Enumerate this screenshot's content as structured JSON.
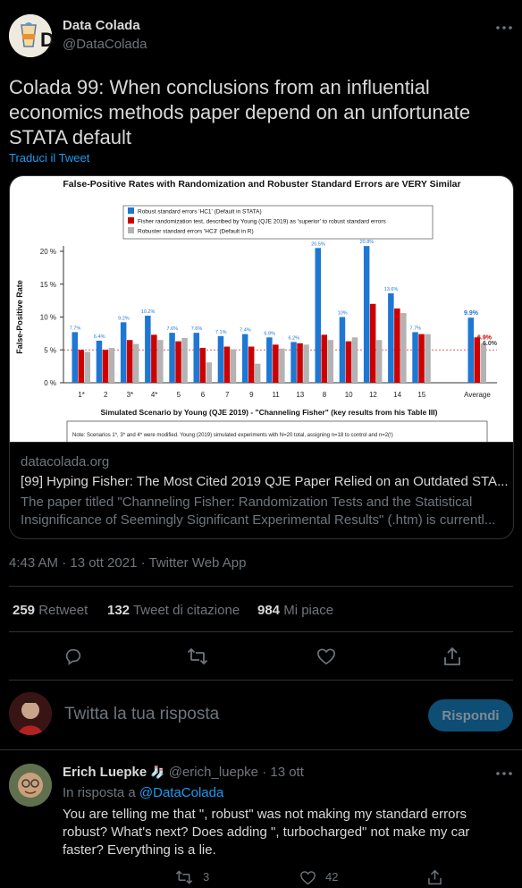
{
  "author": {
    "name": "Data Colada",
    "handle": "@DataColada"
  },
  "tweet": {
    "text_line1": "Colada 99: When conclusions from an influential",
    "text_line2": "economics methods paper depend on an unfortunate",
    "text_line3": "STATA default",
    "translate": "Traduci il Tweet",
    "timestamp": "4:43 AM · 13 ott 2021 · Twitter Web App"
  },
  "card": {
    "domain": "datacolada.org",
    "title": "[99] Hyping Fisher: The Most Cited 2019 QJE Paper Relied on an Outdated STA...",
    "desc_line1": "The paper titled \"Channeling Fisher: Randomization Tests and the Statistical",
    "desc_line2": "Insignificance of Seemingly Significant Experimental Results\" (.htm) is currentl..."
  },
  "chart_data": {
    "type": "bar",
    "title": "False-Positive Rates with Randomization and Robuster Standard Errors are VERY Similar",
    "ylabel": "False-Positive Rate",
    "xlabel": "Simulated Scenario by Young (QJE 2019) - \"Channeling Fisher\" (key results from his Table III)",
    "ylim": [
      0,
      20
    ],
    "yticks": [
      "0 %",
      "5 %",
      "10 %",
      "15 %",
      "20 %"
    ],
    "categories": [
      "1*",
      "2",
      "3*",
      "4*",
      "5",
      "6",
      "7",
      "9",
      "11",
      "13",
      "8",
      "10",
      "12",
      "14",
      "15",
      "Average"
    ],
    "series": [
      {
        "name": "Robust standard errors 'HC1' (Default in STATA)",
        "color": "#1f77d4",
        "values": [
          7.7,
          6.4,
          9.2,
          10.2,
          7.6,
          7.6,
          7.1,
          7.4,
          6.9,
          6.2,
          20.5,
          10.0,
          20.8,
          13.6,
          7.7,
          9.9
        ]
      },
      {
        "name": "Fisher randomization test, described by Young (QJE 2019) as 'superior' to robust standard errors",
        "color": "#cc0000",
        "values": [
          5.0,
          5.0,
          6.5,
          7.3,
          6.3,
          5.3,
          5.5,
          5.5,
          5.8,
          6.0,
          7.3,
          6.3,
          12.0,
          11.3,
          7.4,
          6.9
        ]
      },
      {
        "name": "Robuster standard errors 'HC3' (Default in R)",
        "color": "#b3b3b3",
        "values": [
          4.7,
          5.3,
          5.9,
          6.5,
          6.8,
          3.1,
          5.1,
          2.9,
          5.2,
          5.8,
          6.5,
          6.9,
          6.5,
          10.6,
          7.4,
          6.0
        ]
      }
    ],
    "data_labels": [
      "7.7%",
      "6.4%",
      "9.2%",
      "10.2%",
      "7.6%",
      "7.6%",
      "7.1%",
      "7.4%",
      "6.9%",
      "6.2%",
      "20.5%",
      "10%",
      "20.8%",
      "13.6%",
      "7.7%",
      "9.9%"
    ],
    "average_labels": {
      "red": "6.9%",
      "gray": "6.0%"
    },
    "note": "Note: Scenarios 1*, 3* and 4* were modified. Young (2019) simulated experiments with N=20 total, assigning n=18 to control and n=2(!)"
  },
  "stats": {
    "retweets_count": "259",
    "retweets_label": "Retweet",
    "quotes_count": "132",
    "quotes_label": "Tweet di citazione",
    "likes_count": "984",
    "likes_label": "Mi piace"
  },
  "reply_box": {
    "placeholder": "Twitta la tua risposta",
    "button": "Rispondi"
  },
  "reply": {
    "name": "Erich Luepke",
    "emoji": "🧦",
    "handle": "@erich_luepke",
    "time": "· 13 ott",
    "in_reply_prefix": "In risposta a ",
    "in_reply_handle": "@DataColada",
    "text_line1": "You are telling me that \", robust\" was not making my standard errors",
    "text_line2": "robust? What's next? Does adding \", turbocharged\" not make my car",
    "text_line3": "faster? Everything is a lie.",
    "retweets": "3",
    "likes": "42"
  },
  "icons": [
    "more-icon",
    "reply-icon",
    "retweet-icon",
    "like-icon",
    "share-icon"
  ]
}
